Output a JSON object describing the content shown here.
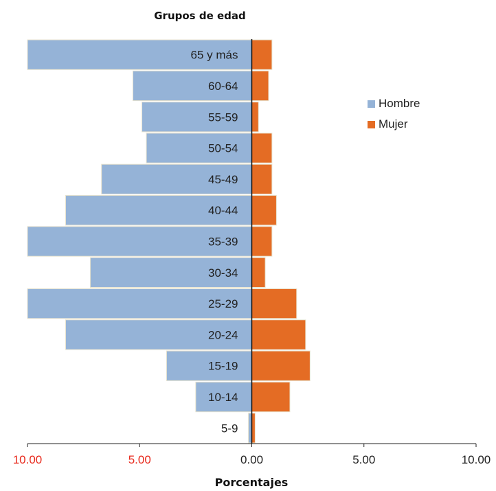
{
  "chart_data": {
    "type": "bar",
    "orientation": "horizontal",
    "subtype": "population-pyramid",
    "title": "Grupos de edad",
    "xlabel": "Porcentajes",
    "ylabel": "",
    "categories": [
      "65 y más",
      "60-64",
      "55-59",
      "50-54",
      "45-49",
      "40-44",
      "35-39",
      "30-34",
      "25-29",
      "20-24",
      "15-19",
      "10-14",
      "5-9"
    ],
    "series": [
      {
        "name": "Hombre",
        "color": "#95b3d7",
        "direction": "left",
        "values": [
          10.0,
          5.3,
          4.9,
          4.7,
          6.7,
          8.3,
          10.0,
          7.2,
          10.0,
          8.3,
          3.8,
          2.5,
          0.15
        ]
      },
      {
        "name": "Mujer",
        "color": "#e46c24",
        "direction": "right",
        "values": [
          0.9,
          0.75,
          0.3,
          0.9,
          0.9,
          1.1,
          0.9,
          0.6,
          2.0,
          2.4,
          2.6,
          1.7,
          0.15
        ]
      }
    ],
    "xlim": [
      -10,
      10
    ],
    "xticks": [
      {
        "value": -10,
        "label": "10.00",
        "color": "#e8291c"
      },
      {
        "value": -5,
        "label": "5.00",
        "color": "#e8291c"
      },
      {
        "value": 0,
        "label": "0.00",
        "color": "#222222"
      },
      {
        "value": 5,
        "label": "5.00",
        "color": "#222222"
      },
      {
        "value": 10,
        "label": "10.00",
        "color": "#222222"
      }
    ],
    "grid": false,
    "legend_position": "right"
  }
}
